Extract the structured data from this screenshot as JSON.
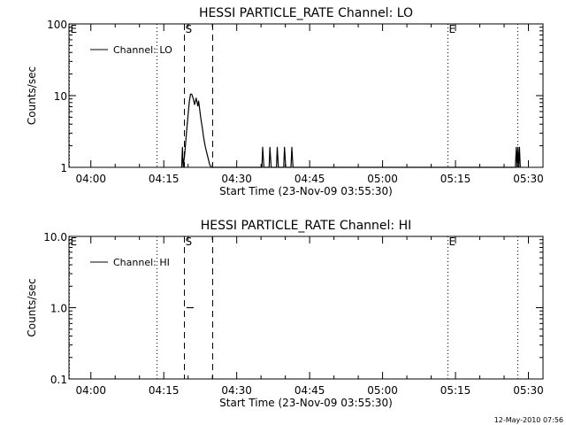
{
  "footer": {
    "timestamp": "12-May-2010 07:56"
  },
  "chart_data": [
    {
      "type": "line",
      "title": "HESSI PARTICLE_RATE Channel: LO",
      "xlabel": "Start Time (23-Nov-09 03:55:30)",
      "ylabel": "Counts/sec",
      "y_scale": "log",
      "ylim": [
        1,
        100
      ],
      "y_ticks": [
        1,
        10,
        100
      ],
      "y_tick_labels": [
        "1",
        "10",
        "100"
      ],
      "xlim": [
        "03:55:30",
        "05:33:00"
      ],
      "x_ticks": [
        "04:00",
        "04:15",
        "04:30",
        "04:45",
        "05:00",
        "05:15",
        "05:30"
      ],
      "x_tick_labels": [
        "04:00",
        "04:15",
        "04:30",
        "04:45",
        "05:00",
        "05:15",
        "05:30"
      ],
      "legend_position": "top-left",
      "series": [
        {
          "name": "Channel: LO",
          "x": [
            "04:18:40",
            "04:18:50",
            "04:19:00",
            "04:19:05",
            "04:19:15",
            "04:19:25",
            "04:19:40",
            "04:20:00",
            "04:20:15",
            "04:20:30",
            "04:20:45",
            "04:21:05",
            "04:21:20",
            "04:21:40",
            "04:22:00",
            "04:22:10",
            "04:22:30",
            "04:22:40",
            "04:22:55",
            "04:23:10",
            "04:23:30",
            "04:23:50",
            "04:24:10",
            "04:24:25",
            "04:24:45",
            "04:25:00",
            "04:25:20",
            "04:35:10",
            "04:35:20",
            "04:35:35",
            "04:36:40",
            "04:36:50",
            "04:37:05",
            "04:38:10",
            "04:38:20",
            "04:38:35",
            "04:39:40",
            "04:39:50",
            "04:40:05",
            "04:41:10",
            "04:41:20",
            "04:41:35",
            "05:27:20",
            "05:27:30",
            "05:27:40",
            "05:27:50",
            "05:28:00",
            "05:28:10",
            "05:28:20"
          ],
          "y": [
            1.0,
            1.9,
            1.0,
            1.15,
            1.4,
            1.9,
            3.1,
            5.4,
            8.3,
            10.5,
            10.5,
            9.0,
            7.5,
            9.2,
            7.2,
            8.4,
            5.6,
            4.6,
            3.6,
            2.7,
            2.0,
            1.6,
            1.3,
            1.1,
            1.0,
            1.0,
            1.0,
            1.0,
            1.9,
            1.0,
            1.0,
            1.9,
            1.0,
            1.0,
            1.9,
            1.0,
            1.0,
            1.9,
            1.0,
            1.0,
            1.9,
            1.0,
            1.0,
            1.9,
            1.0,
            1.9,
            1.0,
            1.9,
            1.0
          ]
        }
      ],
      "annotations": [
        {
          "label": "E",
          "time": "03:55:30",
          "style": "dotted"
        },
        {
          "label": "",
          "time": "04:13:35",
          "style": "dotted"
        },
        {
          "label": "S",
          "time": "04:19:05",
          "style": "dashed"
        },
        {
          "label": "",
          "time": "04:24:55",
          "style": "dashed"
        },
        {
          "label": "E",
          "time": "05:13:25",
          "style": "dotted"
        },
        {
          "label": "",
          "time": "05:27:45",
          "style": "dotted"
        }
      ]
    },
    {
      "type": "line",
      "title": "HESSI PARTICLE_RATE Channel: HI",
      "xlabel": "Start Time (23-Nov-09 03:55:30)",
      "ylabel": "Counts/sec",
      "y_scale": "log",
      "ylim": [
        0.1,
        10.0
      ],
      "y_ticks": [
        0.1,
        1.0,
        10.0
      ],
      "y_tick_labels": [
        "0.1",
        "1.0",
        "10.0"
      ],
      "xlim": [
        "03:55:30",
        "05:33:00"
      ],
      "x_ticks": [
        "04:00",
        "04:15",
        "04:30",
        "04:45",
        "05:00",
        "05:15",
        "05:30"
      ],
      "x_tick_labels": [
        "04:00",
        "04:15",
        "04:30",
        "04:45",
        "05:00",
        "05:15",
        "05:30"
      ],
      "legend_position": "top-left",
      "series": [
        {
          "name": "Channel: HI",
          "x": [
            "04:19:40",
            "04:21:10"
          ],
          "y": [
            1.0,
            1.0
          ]
        }
      ],
      "annotations": [
        {
          "label": "E",
          "time": "03:55:30",
          "style": "dotted"
        },
        {
          "label": "",
          "time": "04:13:35",
          "style": "dotted"
        },
        {
          "label": "S",
          "time": "04:19:05",
          "style": "dashed"
        },
        {
          "label": "",
          "time": "04:24:55",
          "style": "dashed"
        },
        {
          "label": "E",
          "time": "05:13:25",
          "style": "dotted"
        },
        {
          "label": "",
          "time": "05:27:45",
          "style": "dotted"
        }
      ]
    }
  ]
}
